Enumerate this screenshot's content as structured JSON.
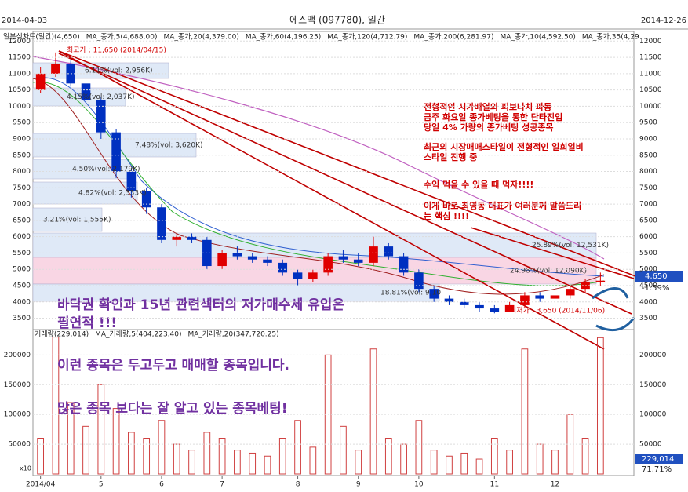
{
  "header": {
    "start": "2014-04-03",
    "title": "에스맥 (097780), 일간",
    "end": "2014-12-26"
  },
  "legend": [
    "일본식차트(일간)(4,650)",
    "MA_종가,5(4,688.00)",
    "MA_종가,20(4,379.00)",
    "MA_종가,60(4,196.25)",
    "MA_종가,120(4,712.79)",
    "MA_종가,200(6,281.97)",
    "MA_종가,10(4,592.50)",
    "MA_종가,35(4,29"
  ],
  "volume_legend": [
    "거래량(229,014)",
    "MA_거래량,5(404,223.40)",
    "MA_거래량,20(347,720.25)"
  ],
  "high_label": "최고가 : 11,650 (2014/04/15)",
  "low_label": "최저가 : 3,650 (2014/11/06)",
  "volume_profile": [
    "6.11%(vol: 2,956K)",
    "4.15%(vol: 2,037K)",
    "7.48%(vol: 3,620K)",
    "4.50%(vol: 2,179K)",
    "4.82%(vol: 2,333K)",
    "3.21%(vol: 1,555K)",
    "25.89%(vol: 12,531K)",
    "24.98%(vol: 12,090K)",
    "18.81%(vol: 9,10"
  ],
  "notes_red": [
    "전형적인 시가배열의 피보나치 파동",
    "금주 화요일 종가베팅을 통한 단타진입",
    "당일 4% 가량의 종가베팅 성공종목",
    "최근의 시장매매스타일이 전형적인 일희일비",
    "스타일 진행 중",
    "수익 먹을 수 있을 때 먹자!!!!",
    "이게 바로 최영동 대표가 여러분께 말씀드리",
    "는 핵심 !!!!"
  ],
  "notes_purple": [
    "바닥권 확인과 15년 관련섹터의 저가매수세 유입은",
    "필연적 !!!",
    "이런 종목은 두고두고 매매할 종목입니다.",
    "많은 종목 보다는 잘 알고 있는 종목베팅!"
  ],
  "right_labels": {
    "price": "4,650",
    "change": "-1.59%",
    "volume": "229,014",
    "ratio": "71.71%"
  },
  "scale_label": "x10",
  "chart_data": {
    "type": "candlestick",
    "categories": [
      "2014/04",
      null,
      null,
      null,
      "5",
      null,
      null,
      null,
      "6",
      null,
      null,
      null,
      "7",
      null,
      null,
      null,
      null,
      "8",
      null,
      null,
      null,
      "9",
      null,
      null,
      null,
      "10",
      null,
      null,
      null,
      null,
      "11",
      null,
      null,
      null,
      "12",
      null,
      null,
      null
    ],
    "open": [
      10500,
      11000,
      11300,
      10700,
      10200,
      9200,
      8000,
      7400,
      6900,
      5900,
      6000,
      5900,
      5100,
      5500,
      5400,
      5300,
      5200,
      4900,
      4700,
      4900,
      5400,
      5300,
      5200,
      5700,
      5400,
      4900,
      4400,
      4100,
      4000,
      3900,
      3800,
      3700,
      3900,
      4200,
      4100,
      4200,
      4400,
      4600
    ],
    "high": [
      11200,
      11650,
      11400,
      10800,
      10300,
      9300,
      8100,
      7500,
      7000,
      6100,
      6100,
      6000,
      5600,
      5700,
      5500,
      5400,
      5300,
      5000,
      5000,
      5500,
      5600,
      5500,
      6000,
      5800,
      5500,
      5000,
      4500,
      4200,
      4100,
      4000,
      3900,
      4000,
      4300,
      4300,
      4300,
      4500,
      4700,
      4900
    ],
    "low": [
      10400,
      10900,
      10600,
      10100,
      9000,
      7800,
      7200,
      6700,
      5800,
      5700,
      5800,
      5000,
      5000,
      5300,
      5200,
      5100,
      4800,
      4500,
      4600,
      4800,
      5200,
      5100,
      5100,
      5300,
      4800,
      4300,
      4000,
      3900,
      3800,
      3700,
      3650,
      3700,
      3800,
      4000,
      4000,
      4100,
      4300,
      4500
    ],
    "close": [
      11000,
      11300,
      10700,
      10200,
      9200,
      8000,
      7400,
      6900,
      5900,
      6000,
      5900,
      5100,
      5500,
      5400,
      5300,
      5200,
      4900,
      4700,
      4900,
      5400,
      5300,
      5200,
      5700,
      5400,
      4900,
      4400,
      4100,
      4000,
      3900,
      3800,
      3700,
      3900,
      4200,
      4100,
      4200,
      4400,
      4600,
      4650
    ],
    "up_color": "#e00000",
    "down_color": "#0030c0",
    "ylim": [
      3200,
      12200
    ],
    "yticks": [
      3500,
      4000,
      4500,
      5000,
      5500,
      6000,
      6500,
      7000,
      7500,
      8000,
      8500,
      9000,
      9500,
      10000,
      10500,
      11000,
      11500,
      12000
    ],
    "volume": [
      60000,
      230000,
      120000,
      80000,
      150000,
      110000,
      70000,
      60000,
      90000,
      50000,
      40000,
      70000,
      60000,
      40000,
      35000,
      30000,
      60000,
      90000,
      45000,
      200000,
      80000,
      40000,
      210000,
      60000,
      50000,
      90000,
      40000,
      30000,
      35000,
      25000,
      60000,
      40000,
      210000,
      50000,
      40000,
      100000,
      60000,
      229014
    ],
    "volume_color": "#d04040",
    "vlim": [
      0,
      240000
    ],
    "vticks": [
      50000,
      100000,
      150000,
      200000
    ]
  }
}
